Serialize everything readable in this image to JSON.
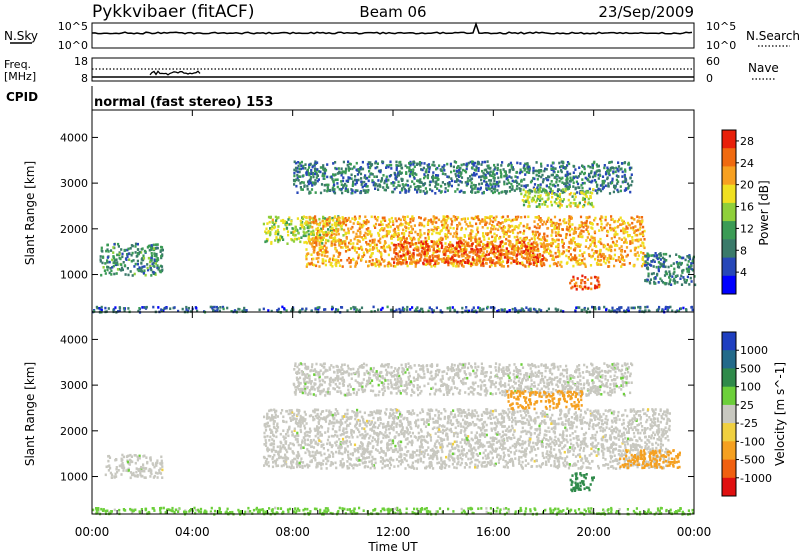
{
  "header": {
    "station": "Pykkvibaer (fitACF)",
    "beam": "Beam 06",
    "date": "23/Sep/2009"
  },
  "side_labels": {
    "nsky": "N.Sky",
    "nsearch": "N.Search",
    "freq": "Freq.",
    "freq_unit": "[MHz]",
    "nave": "Nave",
    "cpid": "CPID",
    "sky_ticks": [
      "10^5",
      "10^0"
    ],
    "search_ticks": [
      "10^5",
      "10^0"
    ],
    "freq_ticks": [
      "18",
      "8"
    ],
    "nave_ticks": [
      "60",
      "0"
    ]
  },
  "cpid_text": "normal (fast stereo) 153",
  "chart_data": [
    {
      "type": "heatmap",
      "title": "Power",
      "ylabel": "Slant Range [km]",
      "xlabel": "Time UT",
      "x_ticks": [
        "00:00",
        "04:00",
        "08:00",
        "12:00",
        "16:00",
        "20:00",
        "00:00"
      ],
      "x_range_hours": [
        0,
        24
      ],
      "y_ticks": [
        1000,
        2000,
        3000,
        4000
      ],
      "ylim": [
        180,
        4600
      ],
      "colorbar": {
        "label": "Power [dB]",
        "ticks": [
          "4",
          "8",
          "12",
          "16",
          "20",
          "24",
          "28"
        ],
        "range": [
          0,
          30
        ],
        "colors": [
          "#0000ff",
          "#2747b8",
          "#3a7a6a",
          "#3b9b55",
          "#8fcf3a",
          "#f0e020",
          "#f7a020",
          "#f06a10",
          "#e8200a"
        ]
      },
      "echo_regions": [
        {
          "t_start": 0.0,
          "t_end": 24.0,
          "range_low": 200,
          "range_high": 320,
          "power": 6
        },
        {
          "t_start": 0.3,
          "t_end": 2.8,
          "range_low": 1000,
          "range_high": 1700,
          "power": 9
        },
        {
          "t_start": 6.8,
          "t_end": 10.0,
          "range_low": 1700,
          "range_high": 2300,
          "power": 16
        },
        {
          "t_start": 8.5,
          "t_end": 22.0,
          "range_low": 1200,
          "range_high": 2300,
          "power": 22
        },
        {
          "t_start": 12.0,
          "t_end": 18.0,
          "range_low": 1250,
          "range_high": 1750,
          "power": 27
        },
        {
          "t_start": 8.0,
          "t_end": 21.5,
          "range_low": 2800,
          "range_high": 3500,
          "power": 8
        },
        {
          "t_start": 17.0,
          "t_end": 20.0,
          "range_low": 2500,
          "range_high": 2900,
          "power": 16
        },
        {
          "t_start": 19.0,
          "t_end": 20.2,
          "range_low": 700,
          "range_high": 1000,
          "power": 27
        },
        {
          "t_start": 22.0,
          "t_end": 24.0,
          "range_low": 800,
          "range_high": 1500,
          "power": 8
        }
      ]
    },
    {
      "type": "heatmap",
      "title": "Velocity",
      "ylabel": "Slant Range [km]",
      "xlabel": "Time UT",
      "x_ticks": [
        "00:00",
        "04:00",
        "08:00",
        "12:00",
        "16:00",
        "20:00",
        "00:00"
      ],
      "x_range_hours": [
        0,
        24
      ],
      "y_ticks": [
        1000,
        2000,
        3000,
        4000
      ],
      "ylim": [
        180,
        4600
      ],
      "colorbar": {
        "label": "Velocity [m s^-1]",
        "ticks": [
          "1000",
          "500",
          "100",
          "25",
          "-25",
          "-100",
          "-500",
          "-1000"
        ],
        "colors": [
          "#1f3fc0",
          "#236a8a",
          "#2f8a4a",
          "#6ccf3a",
          "#c8c8c0",
          "#f0d040",
          "#f5a020",
          "#f06010",
          "#e01010"
        ]
      },
      "echo_regions": [
        {
          "t_start": 0.0,
          "t_end": 24.0,
          "range_low": 200,
          "range_high": 340,
          "velocity": 50
        },
        {
          "t_start": 0.5,
          "t_end": 2.8,
          "range_low": 1000,
          "range_high": 1500,
          "velocity": 0
        },
        {
          "t_start": 6.8,
          "t_end": 23.0,
          "range_low": 1200,
          "range_high": 2500,
          "velocity": 0
        },
        {
          "t_start": 8.0,
          "t_end": 21.5,
          "range_low": 2800,
          "range_high": 3500,
          "velocity": 10
        },
        {
          "t_start": 16.5,
          "t_end": 19.5,
          "range_low": 2500,
          "range_high": 2900,
          "velocity": -150
        },
        {
          "t_start": 19.0,
          "t_end": 20.0,
          "range_low": 700,
          "range_high": 1100,
          "velocity": 200
        },
        {
          "t_start": 21.0,
          "t_end": 23.5,
          "range_low": 1200,
          "range_high": 1600,
          "velocity": -300
        }
      ]
    }
  ]
}
